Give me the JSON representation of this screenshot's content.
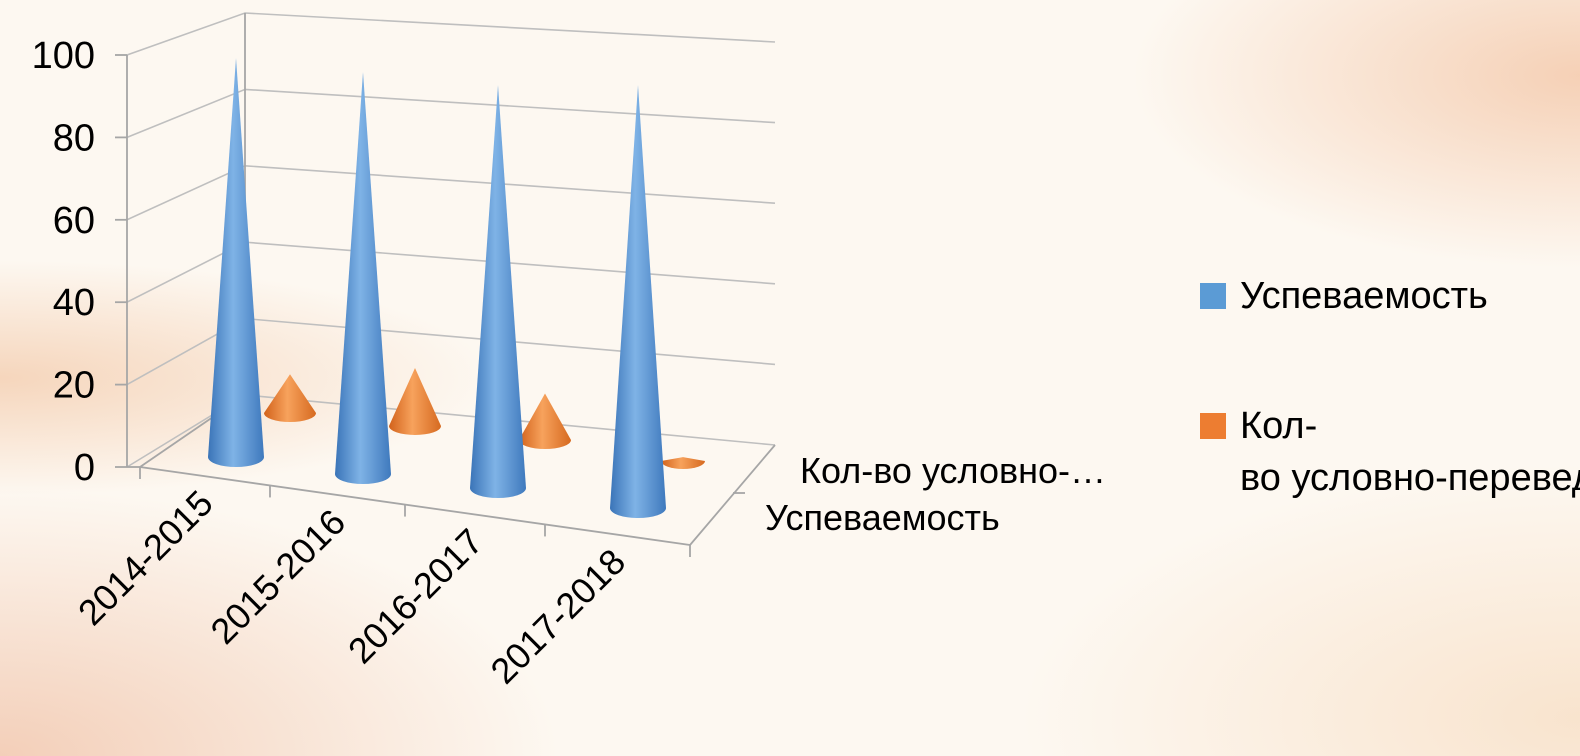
{
  "chart_data": {
    "type": "bar",
    "shape": "cone-3d",
    "categories": [
      "2014-2015",
      "2015-2016",
      "2016-2017",
      "2017-2018"
    ],
    "series": [
      {
        "name": "Успеваемость",
        "values": [
          100,
          100,
          100,
          100
        ],
        "color": "#5b9bd5"
      },
      {
        "name": "Кол-во условно-переведённых",
        "values": [
          10,
          15,
          12,
          1
        ],
        "color": "#ed7d31"
      }
    ],
    "depth_labels": [
      "Кол-во условно-…",
      "Успеваемость"
    ],
    "y_ticks": [
      "0",
      "20",
      "40",
      "60",
      "80",
      "100"
    ],
    "ylim": [
      0,
      100
    ],
    "grid": true,
    "legend": "right"
  }
}
